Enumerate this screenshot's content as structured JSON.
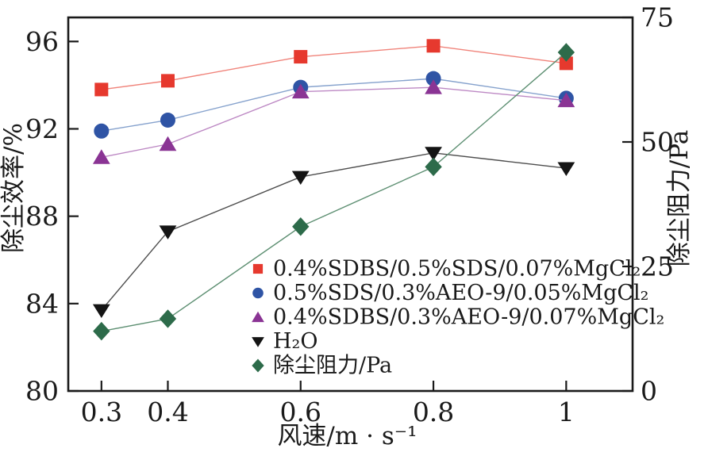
{
  "figure": {
    "background": "#ffffff",
    "frame_color": "#1a1a1a",
    "text_color": "#1a1a1a"
  },
  "chart_data": {
    "type": "line",
    "title": "",
    "xlabel": "风速/m · s⁻¹",
    "ylabel_left": "除尘效率/%",
    "ylabel_right": "除尘阻力/Pa",
    "x": [
      0.3,
      0.4,
      0.6,
      0.8,
      1
    ],
    "xlim": [
      0.25,
      1.1
    ],
    "ylim_left": [
      80,
      97.1
    ],
    "ylim_right": [
      0,
      75
    ],
    "xticks": [
      0.3,
      0.4,
      0.6,
      0.8,
      1
    ],
    "yticks_left": [
      80,
      84,
      88,
      92,
      96
    ],
    "yticks_right": [
      0,
      25,
      50,
      75
    ],
    "grid": false,
    "legend_position": "inside-lower-right",
    "series": [
      {
        "name": "0.4%SDBS/0.5%SDS/0.07%MgCl₂",
        "axis": "left",
        "marker": "square",
        "color": "#e6392e",
        "line_color": "#f0837a",
        "values": [
          93.8,
          94.2,
          95.3,
          95.8,
          95.0
        ]
      },
      {
        "name": "0.5%SDS/0.3%AEO-9/0.05%MgCl₂",
        "axis": "left",
        "marker": "circle",
        "color": "#2f54a5",
        "line_color": "#86a2cd",
        "values": [
          91.9,
          92.4,
          93.9,
          94.3,
          93.4
        ]
      },
      {
        "name": "0.4%SDBS/0.3%AEO-9/0.07%MgCl₂",
        "axis": "left",
        "marker": "triangle-up",
        "color": "#8a3494",
        "line_color": "#bd89c4",
        "values": [
          90.7,
          91.3,
          93.7,
          93.9,
          93.3
        ]
      },
      {
        "name": "H₂O",
        "axis": "left",
        "marker": "triangle-down",
        "color": "#141414",
        "line_color": "#4d4d4d",
        "values": [
          83.7,
          87.3,
          89.8,
          90.9,
          90.2
        ]
      },
      {
        "name": "除尘阻力/Pa",
        "axis": "right",
        "marker": "diamond",
        "color": "#2d6b4a",
        "line_color": "#5d8f72",
        "values": [
          12,
          14.5,
          33,
          45,
          68
        ]
      }
    ]
  }
}
